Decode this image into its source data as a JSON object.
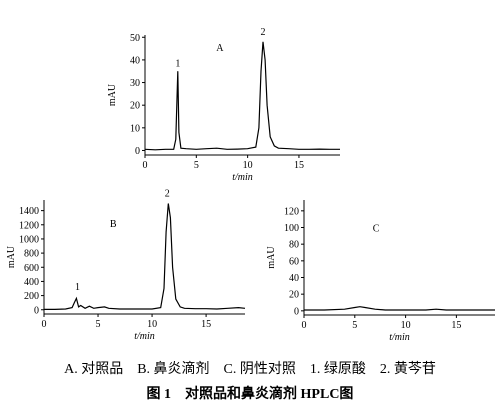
{
  "chart_data": [
    {
      "type": "line",
      "xlabel": "t/min",
      "ylabel": "mAU",
      "x": [
        0,
        1,
        2,
        2.8,
        3.0,
        3.1,
        3.2,
        3.3,
        3.5,
        4,
        5,
        6,
        7,
        8,
        9,
        10,
        10.8,
        11.1,
        11.3,
        11.5,
        11.7,
        11.9,
        12.2,
        12.6,
        13,
        14,
        15,
        16,
        17,
        18,
        19
      ],
      "series": [
        {
          "color": "#000000",
          "values": [
            0.5,
            0.3,
            0.5,
            0.5,
            5,
            20,
            35,
            8,
            1,
            0.8,
            0.5,
            0.8,
            1,
            0.5,
            0.6,
            0.8,
            1.5,
            10,
            35,
            48,
            40,
            20,
            6,
            2,
            1,
            0.8,
            0.5,
            0.5,
            0.6,
            0.5,
            0.5
          ]
        }
      ],
      "xlim": [
        0,
        19
      ],
      "xticks": [
        0,
        5,
        10,
        15
      ],
      "ylim": [
        -2,
        51
      ],
      "yticks": [
        0,
        10,
        20,
        30,
        40,
        50
      ],
      "annotations": [
        {
          "text": "A",
          "x": 7.3,
          "y": 44
        },
        {
          "text": "1",
          "x": 3.2,
          "y": 37
        },
        {
          "text": "2",
          "x": 11.5,
          "y": 51
        }
      ]
    },
    {
      "type": "line",
      "xlabel": "t/min",
      "ylabel": "mAU",
      "x": [
        0,
        1,
        2,
        2.6,
        2.8,
        3.0,
        3.2,
        3.4,
        3.8,
        4.2,
        4.6,
        5,
        5.6,
        6,
        7,
        8,
        9,
        10,
        10.8,
        11.1,
        11.3,
        11.5,
        11.7,
        11.9,
        12.2,
        12.6,
        13,
        14,
        15,
        16,
        17,
        18,
        18.6
      ],
      "series": [
        {
          "color": "#000000",
          "values": [
            5,
            5,
            10,
            30,
            100,
            160,
            40,
            60,
            20,
            50,
            20,
            30,
            40,
            20,
            10,
            10,
            10,
            10,
            30,
            300,
            1100,
            1500,
            1300,
            600,
            150,
            40,
            20,
            15,
            15,
            10,
            20,
            30,
            20
          ]
        }
      ],
      "xlim": [
        0,
        18.6
      ],
      "xticks": [
        0,
        5,
        10,
        15
      ],
      "ylim": [
        -60,
        1550
      ],
      "yticks": [
        0,
        200,
        400,
        600,
        800,
        1000,
        1200,
        1400
      ],
      "annotations": [
        {
          "text": "B",
          "x": 6.4,
          "y": 1170
        },
        {
          "text": "1",
          "x": 3.1,
          "y": 280
        },
        {
          "text": "2",
          "x": 11.4,
          "y": 1600
        }
      ]
    },
    {
      "type": "line",
      "xlabel": "t/min",
      "ylabel": "mAU",
      "x": [
        0,
        2,
        4,
        5,
        5.5,
        6,
        7,
        8,
        10,
        12,
        13,
        14,
        16,
        18.8
      ],
      "series": [
        {
          "color": "#000000",
          "values": [
            1,
            1,
            2,
            4,
            5,
            4,
            2,
            1,
            1,
            1,
            2,
            1,
            1,
            1
          ]
        }
      ],
      "xlim": [
        0,
        18.8
      ],
      "xticks": [
        0,
        5,
        10,
        15
      ],
      "ylim": [
        -5,
        133
      ],
      "yticks": [
        0,
        20,
        40,
        60,
        80,
        100,
        120
      ],
      "annotations": [
        {
          "text": "C",
          "x": 7.1,
          "y": 95
        }
      ]
    }
  ],
  "caption": "A. 对照品　B. 鼻炎滴剂　C. 阴性对照　1. 绿原酸　2. 黄芩苷",
  "figure_title": "图 1　对照品和鼻炎滴剂 HPLC图"
}
